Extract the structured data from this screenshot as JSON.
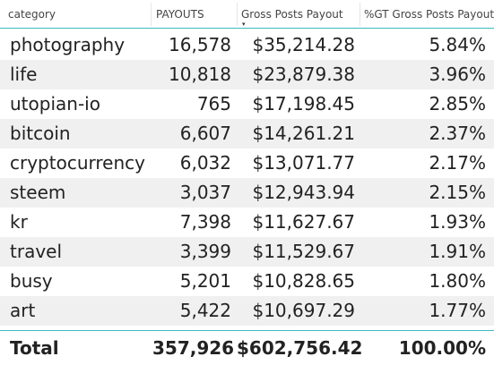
{
  "header": {
    "category": "category",
    "payouts": "PAYOUTS",
    "gross": "Gross Posts Payout",
    "pct": "%GT Gross Posts Payout",
    "sort_arrow": "▾"
  },
  "rows": [
    {
      "category": "photography",
      "payouts": "16,578",
      "gross": "$35,214.28",
      "pct": "5.84%"
    },
    {
      "category": "life",
      "payouts": "10,818",
      "gross": "$23,879.38",
      "pct": "3.96%"
    },
    {
      "category": "utopian-io",
      "payouts": "765",
      "gross": "$17,198.45",
      "pct": "2.85%"
    },
    {
      "category": "bitcoin",
      "payouts": "6,607",
      "gross": "$14,261.21",
      "pct": "2.37%"
    },
    {
      "category": "cryptocurrency",
      "payouts": "6,032",
      "gross": "$13,071.77",
      "pct": "2.17%"
    },
    {
      "category": "steem",
      "payouts": "3,037",
      "gross": "$12,943.94",
      "pct": "2.15%"
    },
    {
      "category": "kr",
      "payouts": "7,398",
      "gross": "$11,627.67",
      "pct": "1.93%"
    },
    {
      "category": "travel",
      "payouts": "3,399",
      "gross": "$11,529.67",
      "pct": "1.91%"
    },
    {
      "category": "busy",
      "payouts": "5,201",
      "gross": "$10,828.65",
      "pct": "1.80%"
    },
    {
      "category": "art",
      "payouts": "5,422",
      "gross": "$10,697.29",
      "pct": "1.77%"
    },
    {
      "category": "",
      "payouts": "",
      "gross": "",
      "pct": ""
    }
  ],
  "total": {
    "label": "Total",
    "payouts": "357,926",
    "gross": "$602,756.42",
    "pct": "100.00%"
  },
  "colors": {
    "accent": "#3fb9bd",
    "row_alt": "#f0f0f0"
  }
}
